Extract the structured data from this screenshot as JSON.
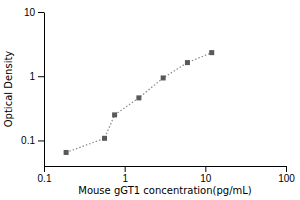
{
  "chart_data": {
    "type": "line",
    "x": [
      0.188,
      0.563,
      0.75,
      1.5,
      3.0,
      6.0,
      12.0
    ],
    "values": [
      0.065,
      0.108,
      0.25,
      0.46,
      0.94,
      1.63,
      2.33
    ],
    "xlabel": "Mouse gGT1 concentration(pg/mL)",
    "ylabel": "Optical Density",
    "xlim": [
      0.1,
      100
    ],
    "ylim": [
      0.04,
      10
    ],
    "xticks": [
      0.1,
      1,
      10,
      100
    ],
    "yticks": [
      0.1,
      1,
      10
    ],
    "log": true,
    "grid": false,
    "color": "#888888",
    "marker": "square",
    "line_style": "dotted"
  }
}
